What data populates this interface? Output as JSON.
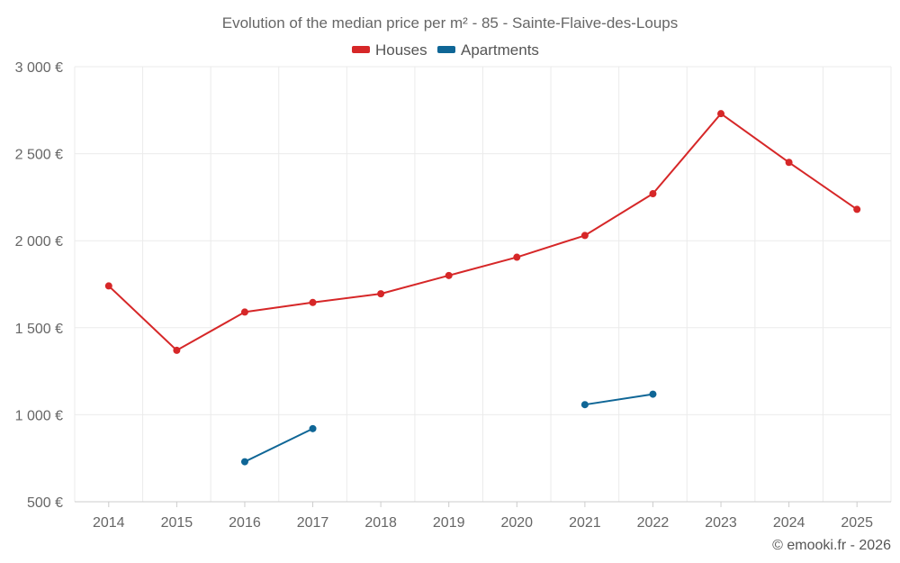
{
  "chart_data": {
    "type": "line",
    "title": "Evolution of the median price per m² - 85 - Sainte-Flaive-des-Loups",
    "categories": [
      "2014",
      "2015",
      "2016",
      "2017",
      "2018",
      "2019",
      "2020",
      "2021",
      "2022",
      "2023",
      "2024",
      "2025"
    ],
    "series": [
      {
        "name": "Houses",
        "color": "#d62728",
        "values": [
          1740,
          1370,
          1590,
          1645,
          1695,
          1800,
          1905,
          2030,
          2270,
          2730,
          2450,
          2180
        ]
      },
      {
        "name": "Apartments",
        "color": "#0f6696",
        "values": [
          null,
          null,
          730,
          920,
          null,
          null,
          null,
          1058,
          1118,
          null,
          null,
          null
        ]
      }
    ],
    "yticks": [
      {
        "value": 500,
        "label": "500 €"
      },
      {
        "value": 1000,
        "label": "1 000 €"
      },
      {
        "value": 1500,
        "label": "1 500 €"
      },
      {
        "value": 2000,
        "label": "2 000 €"
      },
      {
        "value": 2500,
        "label": "2 500 €"
      },
      {
        "value": 3000,
        "label": "3 000 €"
      }
    ],
    "ylim": [
      500,
      3000
    ],
    "xlabel": "",
    "ylabel": "",
    "legend_position": "top-center",
    "grid": true,
    "credit": "© emooki.fr - 2026"
  }
}
